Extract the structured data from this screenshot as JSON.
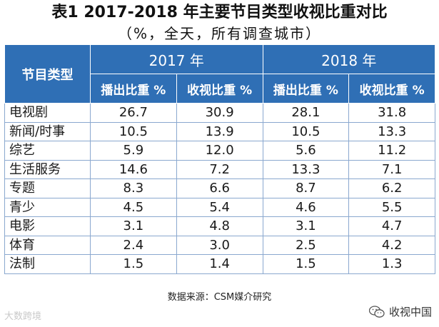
{
  "title": "表1 2017-2018 年主要节目类型收视比重对比",
  "subtitle": "（%，全天，所有调查城市）",
  "source": "数据来源：CSM媒介研究",
  "watermark_left": "大数跨境",
  "watermark_right": "收视中国",
  "colors": {
    "header_bg": "#2f6fb5",
    "header_text": "#ffffff",
    "border": "#8aa8cf"
  },
  "chart_data": {
    "type": "table",
    "title": "表1 2017-2018 年主要节目类型收视比重对比",
    "subtitle": "（%，全天，所有调查城市）",
    "row_header": "节目类型",
    "column_groups": [
      {
        "label": "2017 年",
        "columns": [
          "播出比重 %",
          "收视比重 %"
        ]
      },
      {
        "label": "2018 年",
        "columns": [
          "播出比重 %",
          "收视比重 %"
        ]
      }
    ],
    "rows": [
      {
        "name": "电视剧",
        "values": [
          "26.7",
          "30.9",
          "28.1",
          "31.8"
        ]
      },
      {
        "name": "新闻/时事",
        "values": [
          "10.5",
          "13.9",
          "10.5",
          "13.3"
        ]
      },
      {
        "name": "综艺",
        "values": [
          "5.9",
          "12.0",
          "5.6",
          "11.2"
        ]
      },
      {
        "name": "生活服务",
        "values": [
          "14.6",
          "7.2",
          "13.3",
          "7.1"
        ]
      },
      {
        "name": "专题",
        "values": [
          "8.3",
          "6.6",
          "8.7",
          "6.2"
        ]
      },
      {
        "name": "青少",
        "values": [
          "4.5",
          "5.4",
          "4.6",
          "5.5"
        ]
      },
      {
        "name": "电影",
        "values": [
          "3.1",
          "4.8",
          "3.1",
          "4.7"
        ]
      },
      {
        "name": "体育",
        "values": [
          "2.4",
          "3.0",
          "2.5",
          "4.2"
        ]
      },
      {
        "name": "法制",
        "values": [
          "1.5",
          "1.4",
          "1.5",
          "1.3"
        ]
      }
    ]
  }
}
